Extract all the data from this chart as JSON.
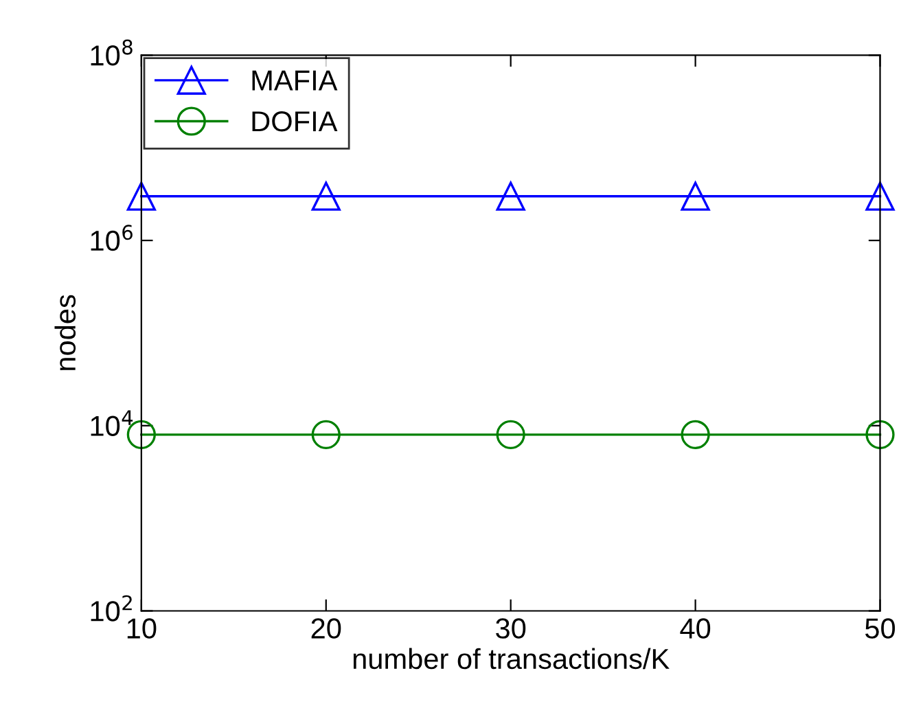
{
  "chart_data": {
    "type": "line",
    "xlabel": "number of transactions/K",
    "ylabel": "nodes",
    "log": "y",
    "x": [
      10,
      20,
      30,
      40,
      50
    ],
    "series": [
      {
        "name": "MAFIA",
        "color": "#0000ff",
        "marker": "triangle",
        "values": [
          3000000,
          3000000,
          3000000,
          3000000,
          3000000
        ]
      },
      {
        "name": "DOFIA",
        "color": "#008000",
        "marker": "circle",
        "values": [
          8000,
          8000,
          8000,
          8000,
          8000
        ]
      }
    ],
    "xlim": [
      10,
      50
    ],
    "xticks": [
      10,
      20,
      30,
      40,
      50
    ],
    "ylim": [
      100,
      100000000
    ],
    "yticks": [
      {
        "value": 100,
        "label": "10$^{2}$"
      },
      {
        "value": 1000000,
        "label": "10$^{6}$"
      },
      {
        "value": 10000,
        "label": "10$^{4}$"
      },
      {
        "value": 100000000,
        "label": "10$^{8}$"
      }
    ],
    "grid": false,
    "legend": "top left",
    "line_style": "solid"
  }
}
